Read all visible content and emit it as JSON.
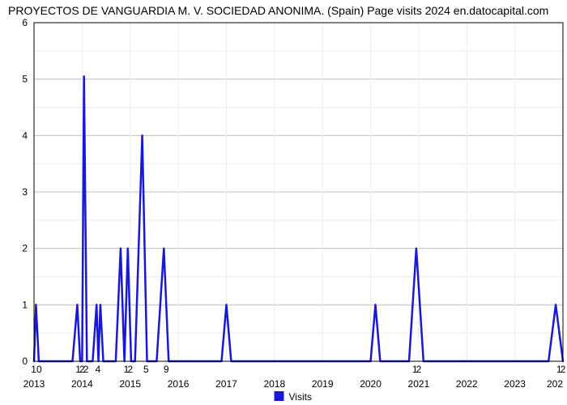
{
  "title": "PROYECTOS DE VANGUARDIA M. V. SOCIEDAD ANONIMA. (Spain) Page visits 2024 en.datocapital.com",
  "chart": {
    "type": "line",
    "background_color": "#ffffff",
    "grid_color_major": "#bfbfbf",
    "grid_color_minor": "#ececec",
    "line_color": "#1818d6",
    "line_width": 2.5,
    "x": {
      "min": 2013,
      "max": 2024,
      "ticks": [
        2013,
        2014,
        2015,
        2016,
        2017,
        2018,
        2019,
        2020,
        2021,
        2022,
        2023
      ]
    },
    "y": {
      "min": 0,
      "max": 6,
      "ticks": [
        0,
        1,
        2,
        3,
        4,
        5,
        6
      ]
    },
    "top_visit_labels": [
      {
        "x": 2013.05,
        "label": "10"
      },
      {
        "x": 2013.92,
        "label": "1"
      },
      {
        "x": 2014.0,
        "label": "2"
      },
      {
        "x": 2014.08,
        "label": "2"
      },
      {
        "x": 2014.33,
        "label": "4"
      },
      {
        "x": 2014.92,
        "label": "1"
      },
      {
        "x": 2015.0,
        "label": "2"
      },
      {
        "x": 2015.33,
        "label": "5"
      },
      {
        "x": 2015.75,
        "label": "9"
      },
      {
        "x": 2020.92,
        "label": "1"
      },
      {
        "x": 2021.0,
        "label": "2"
      },
      {
        "x": 2023.92,
        "label": "1"
      },
      {
        "x": 2024.0,
        "label": "2"
      }
    ],
    "series": [
      {
        "x": 2013.0,
        "y": 0.0
      },
      {
        "x": 2013.04,
        "y": 1.0
      },
      {
        "x": 2013.1,
        "y": 0.0
      },
      {
        "x": 2013.8,
        "y": 0.0
      },
      {
        "x": 2013.9,
        "y": 1.0
      },
      {
        "x": 2013.96,
        "y": 0.0
      },
      {
        "x": 2014.0,
        "y": 0.0
      },
      {
        "x": 2014.04,
        "y": 5.05
      },
      {
        "x": 2014.1,
        "y": 0.0
      },
      {
        "x": 2014.22,
        "y": 0.0
      },
      {
        "x": 2014.3,
        "y": 1.0
      },
      {
        "x": 2014.34,
        "y": 0.0
      },
      {
        "x": 2014.38,
        "y": 1.0
      },
      {
        "x": 2014.44,
        "y": 0.0
      },
      {
        "x": 2014.7,
        "y": 0.0
      },
      {
        "x": 2014.8,
        "y": 2.0
      },
      {
        "x": 2014.88,
        "y": 0.0
      },
      {
        "x": 2014.95,
        "y": 2.0
      },
      {
        "x": 2015.02,
        "y": 0.0
      },
      {
        "x": 2015.1,
        "y": 0.0
      },
      {
        "x": 2015.25,
        "y": 4.0
      },
      {
        "x": 2015.35,
        "y": 0.0
      },
      {
        "x": 2015.55,
        "y": 0.0
      },
      {
        "x": 2015.7,
        "y": 2.0
      },
      {
        "x": 2015.8,
        "y": 0.0
      },
      {
        "x": 2016.9,
        "y": 0.0
      },
      {
        "x": 2017.0,
        "y": 1.0
      },
      {
        "x": 2017.1,
        "y": 0.0
      },
      {
        "x": 2020.0,
        "y": 0.0
      },
      {
        "x": 2020.1,
        "y": 1.0
      },
      {
        "x": 2020.2,
        "y": 0.0
      },
      {
        "x": 2020.8,
        "y": 0.0
      },
      {
        "x": 2020.95,
        "y": 2.0
      },
      {
        "x": 2021.1,
        "y": 0.0
      },
      {
        "x": 2023.7,
        "y": 0.0
      },
      {
        "x": 2023.85,
        "y": 1.0
      },
      {
        "x": 2024.0,
        "y": 0.0
      }
    ]
  },
  "legend": {
    "label": "Visits",
    "color": "#1818d6"
  }
}
